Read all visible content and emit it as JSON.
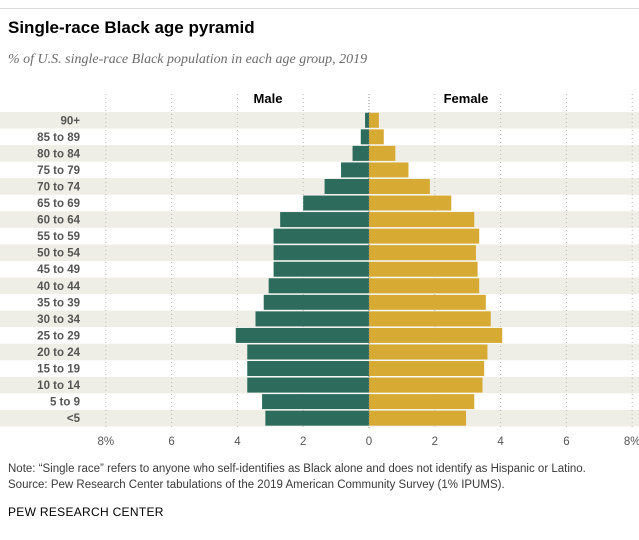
{
  "title": "Single-race Black age pyramid",
  "subtitle": "% of U.S. single-race Black population in each age group, 2019",
  "note": "Note: “Single race” refers to anyone who self-identifies as Black alone and does not identify as Hispanic or Latino.",
  "source": "Source: Pew Research Center tabulations of the 2019 American Community Survey (1% IPUMS).",
  "credit": "PEW RESEARCH CENTER",
  "colors": {
    "male": "#2d6b5c",
    "female": "#d6aa33",
    "band": "#efeee6",
    "grid": "#b9b9b9",
    "label": "#555555"
  },
  "chart_data": {
    "type": "bar",
    "orientation": "horizontal-diverging",
    "categories": [
      "90+",
      "85 to 89",
      "80 to 84",
      "75 to 79",
      "70 to 74",
      "65 to 69",
      "60 to 64",
      "55 to 59",
      "50 to 54",
      "45 to 49",
      "40 to 44",
      "35 to 39",
      "30 to 34",
      "25 to 29",
      "20 to 24",
      "15 to 19",
      "10 to 14",
      "5 to 9",
      "<5"
    ],
    "series": [
      {
        "name": "Male",
        "values": [
          0.12,
          0.25,
          0.5,
          0.85,
          1.35,
          2.0,
          2.7,
          2.9,
          2.9,
          2.9,
          3.05,
          3.2,
          3.45,
          4.05,
          3.7,
          3.7,
          3.7,
          3.25,
          3.15
        ]
      },
      {
        "name": "Female",
        "values": [
          0.3,
          0.45,
          0.8,
          1.2,
          1.85,
          2.5,
          3.2,
          3.35,
          3.25,
          3.3,
          3.35,
          3.55,
          3.7,
          4.05,
          3.6,
          3.5,
          3.45,
          3.2,
          2.95
        ]
      }
    ],
    "xlim": [
      -8,
      8
    ],
    "xticks": [
      -8,
      -6,
      -4,
      -2,
      0,
      2,
      4,
      6,
      8
    ],
    "xtick_labels": [
      "8%",
      "6",
      "4",
      "2",
      "0",
      "2",
      "4",
      "6",
      "8%"
    ],
    "grid": true,
    "legend": "series labels at top of each side"
  }
}
